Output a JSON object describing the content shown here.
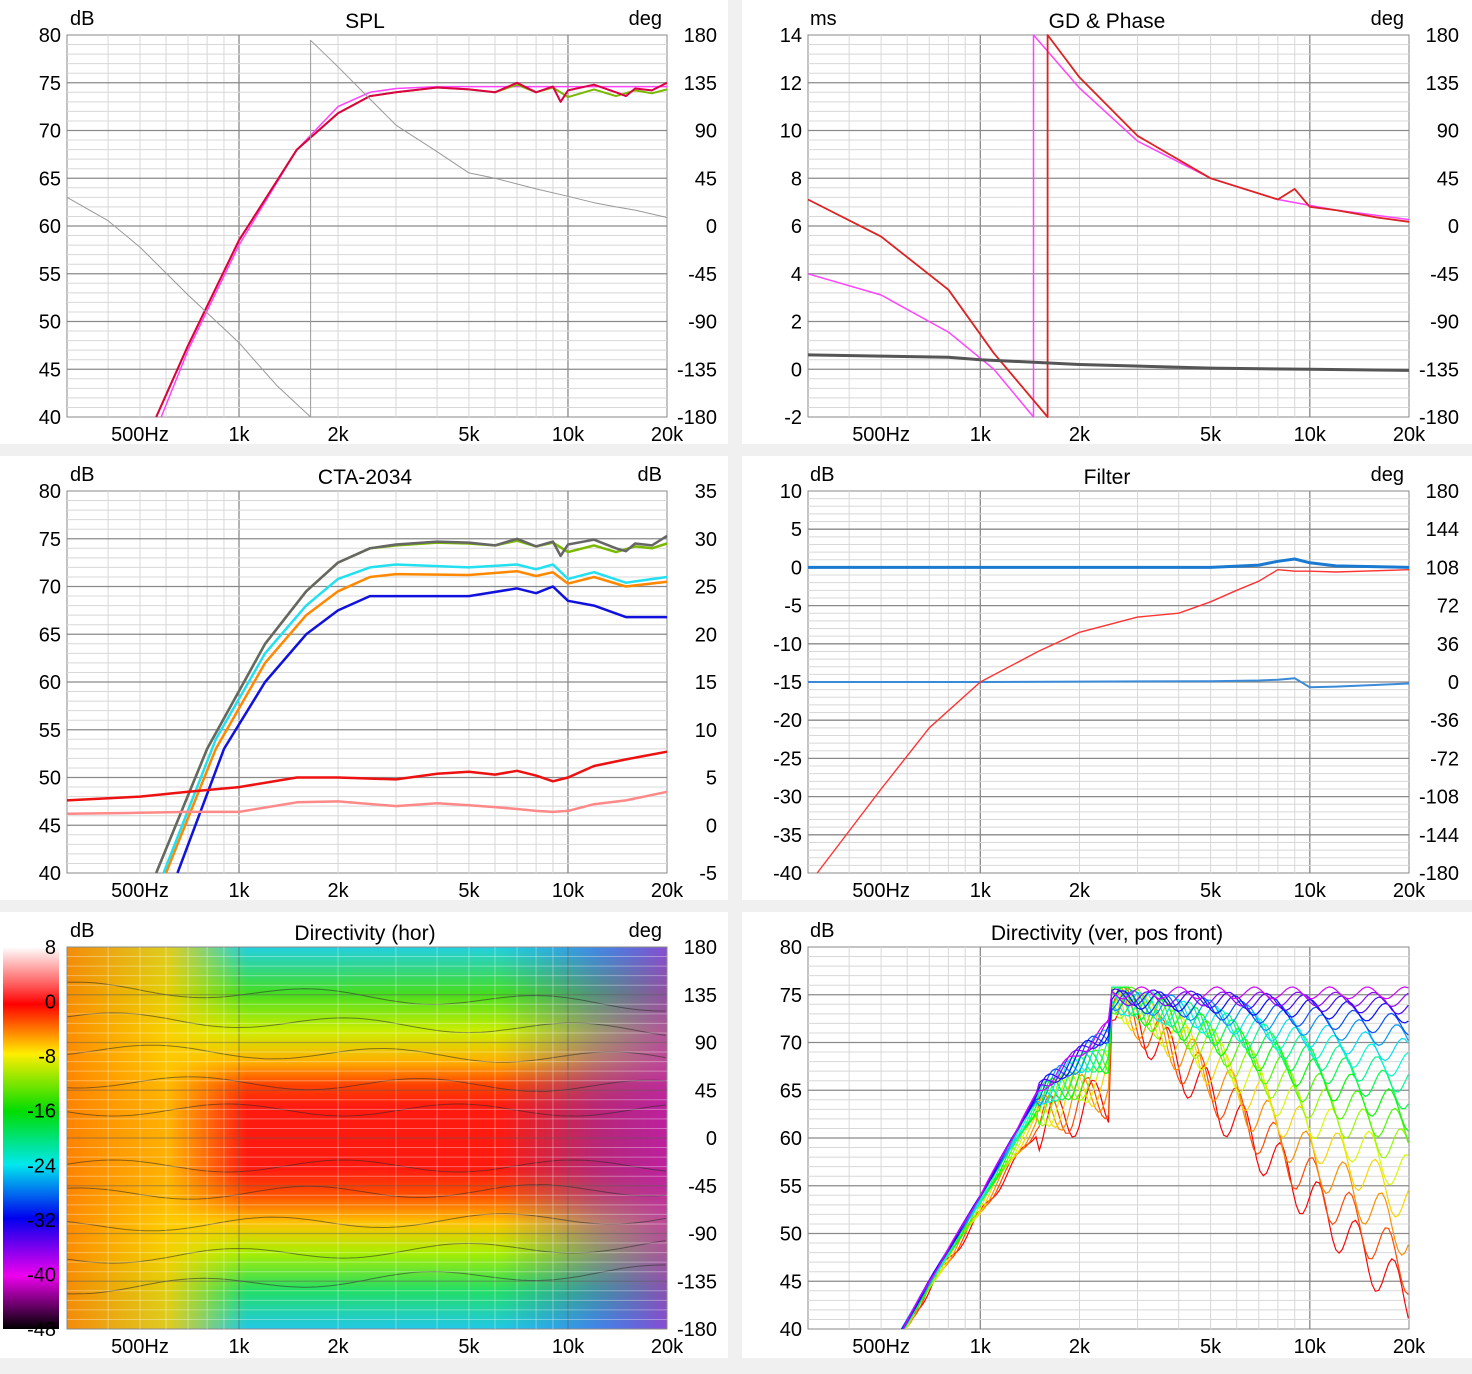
{
  "freq_ticks": [
    {
      "f": 500,
      "label": "500Hz"
    },
    {
      "f": 1000,
      "label": "1k"
    },
    {
      "f": 2000,
      "label": "2k"
    },
    {
      "f": 5000,
      "label": "5k"
    },
    {
      "f": 10000,
      "label": "10k"
    },
    {
      "f": 20000,
      "label": "20k"
    }
  ],
  "chart_data": [
    {
      "id": "spl",
      "type": "line",
      "title": "SPL",
      "left_unit": "dB",
      "right_unit": "deg",
      "xlim": [
        300,
        20000
      ],
      "xscale": "log",
      "ylim": [
        40,
        80
      ],
      "y_ticks": [
        80,
        75,
        70,
        65,
        60,
        55,
        50,
        45,
        40
      ],
      "y2lim": [
        -180,
        180
      ],
      "y2_ticks": [
        180,
        135,
        90,
        45,
        0,
        -45,
        -90,
        -135,
        -180
      ],
      "grid": true,
      "series": [
        {
          "color": "#ff44ff",
          "width": 1.5,
          "axis": "left",
          "x": [
            580,
            700,
            1000,
            1500,
            2000,
            2500,
            3000,
            4000,
            6000,
            10000,
            20000
          ],
          "y": [
            40,
            47,
            58,
            68,
            72.5,
            74,
            74.4,
            74.6,
            74.6,
            74.6,
            74.6
          ]
        },
        {
          "color": "#7ab800",
          "width": 2,
          "axis": "left",
          "x": [
            560,
            700,
            1000,
            1500,
            2000,
            2500,
            3000,
            4000,
            5000,
            6000,
            7000,
            8000,
            9000,
            10000,
            12000,
            14000,
            16000,
            18000,
            20000
          ],
          "y": [
            40,
            47.5,
            58.5,
            68,
            71.8,
            73.6,
            74,
            74.5,
            74.3,
            74,
            74.8,
            74,
            74.5,
            73.5,
            74.3,
            73.6,
            74.2,
            73.9,
            74.3
          ]
        },
        {
          "color": "#dd0044",
          "width": 2,
          "axis": "left",
          "x": [
            560,
            700,
            1000,
            1500,
            2000,
            2500,
            3000,
            4000,
            5000,
            6000,
            7000,
            8000,
            9000,
            9500,
            10000,
            12000,
            14000,
            15000,
            16000,
            18000,
            20000
          ],
          "y": [
            40,
            47.5,
            58.5,
            68,
            71.8,
            73.6,
            74,
            74.5,
            74.3,
            74,
            75,
            74,
            74.6,
            73,
            74.2,
            74.8,
            74,
            73.6,
            74.4,
            74.2,
            75
          ]
        },
        {
          "color": "#999999",
          "width": 1,
          "axis": "right",
          "x": [
            300,
            400,
            500,
            700,
            1000,
            1300,
            1650,
            1650,
            2000,
            3000,
            4000,
            5000,
            6000,
            8000,
            10000,
            12000,
            14000,
            16000,
            20000
          ],
          "y": [
            27,
            5,
            -20,
            -65,
            -110,
            -150,
            -180,
            175,
            150,
            95,
            70,
            50,
            45,
            35,
            28,
            22,
            18,
            15,
            8
          ]
        }
      ]
    },
    {
      "id": "gd",
      "type": "line",
      "title": "GD & Phase",
      "left_unit": "ms",
      "right_unit": "deg",
      "xlim": [
        300,
        20000
      ],
      "xscale": "log",
      "ylim": [
        -2,
        14
      ],
      "y_ticks": [
        14,
        12,
        10,
        8,
        6,
        4,
        2,
        0,
        -2
      ],
      "y2lim": [
        -180,
        180
      ],
      "y2_ticks": [
        180,
        135,
        90,
        45,
        0,
        -45,
        -90,
        -135,
        -180
      ],
      "grid": true,
      "series": [
        {
          "color": "#ff44ff",
          "width": 1.5,
          "axis": "right",
          "x": [
            300,
            500,
            800,
            1100,
            1450,
            1450,
            2000,
            3000,
            5000,
            8000,
            12000,
            20000
          ],
          "y": [
            -45,
            -65,
            -100,
            -135,
            -180,
            180,
            130,
            80,
            45,
            25,
            15,
            6
          ]
        },
        {
          "color": "#dd2222",
          "width": 1.8,
          "axis": "right",
          "x": [
            300,
            500,
            800,
            1100,
            1600,
            1600,
            2000,
            3000,
            5000,
            8000,
            9000,
            10000,
            12000,
            16000,
            20000
          ],
          "y": [
            25,
            -10,
            -60,
            -120,
            -180,
            180,
            140,
            85,
            45,
            25,
            35,
            18,
            15,
            8,
            4
          ]
        },
        {
          "color": "#555555",
          "width": 3,
          "axis": "left",
          "x": [
            300,
            500,
            800,
            1000,
            2000,
            5000,
            10000,
            20000
          ],
          "y": [
            0.6,
            0.55,
            0.5,
            0.4,
            0.2,
            0.05,
            0,
            -0.05
          ]
        }
      ]
    },
    {
      "id": "cta",
      "type": "line",
      "title": "CTA-2034",
      "left_unit": "dB",
      "right_unit": "dB",
      "xlim": [
        300,
        20000
      ],
      "xscale": "log",
      "ylim": [
        40,
        80
      ],
      "y_ticks": [
        80,
        75,
        70,
        65,
        60,
        55,
        50,
        45,
        40
      ],
      "y2lim": [
        -5,
        35
      ],
      "y2_ticks": [
        35,
        30,
        25,
        20,
        15,
        10,
        5,
        0,
        -5
      ],
      "grid": true,
      "series": [
        {
          "color": "#1111dd",
          "width": 2.5,
          "axis": "left",
          "x": [
            650,
            900,
            1200,
            1600,
            2000,
            2500,
            3000,
            5000,
            7000,
            8000,
            9000,
            10000,
            12000,
            15000,
            20000
          ],
          "y": [
            40,
            53,
            60,
            65,
            67.5,
            69,
            69,
            69,
            69.8,
            69.3,
            70,
            68.5,
            68,
            66.8,
            66.8
          ]
        },
        {
          "color": "#ff8800",
          "width": 2.5,
          "axis": "left",
          "x": [
            600,
            850,
            1200,
            1600,
            2000,
            2500,
            3000,
            5000,
            7000,
            8000,
            9000,
            10000,
            12000,
            15000,
            20000
          ],
          "y": [
            40,
            53,
            62,
            67,
            69.5,
            71,
            71.3,
            71.2,
            71.6,
            71.1,
            71.5,
            70.3,
            71,
            70,
            70.5
          ]
        },
        {
          "color": "#22e0f0",
          "width": 2.5,
          "axis": "left",
          "x": [
            590,
            850,
            1200,
            1600,
            2000,
            2500,
            3000,
            5000,
            7000,
            8000,
            9000,
            10000,
            12000,
            15000,
            20000
          ],
          "y": [
            40,
            54,
            63,
            68,
            70.8,
            72,
            72.3,
            72,
            72.3,
            71.8,
            72.3,
            70.8,
            71.5,
            70.4,
            71
          ]
        },
        {
          "color": "#7ab800",
          "width": 2.5,
          "axis": "left",
          "x": [
            560,
            800,
            1200,
            1600,
            2000,
            2500,
            3000,
            4000,
            5000,
            6000,
            7000,
            8000,
            9000,
            10000,
            12000,
            14000,
            16000,
            18000,
            20000
          ],
          "y": [
            40,
            53,
            64,
            69.5,
            72.5,
            74,
            74.3,
            74.6,
            74.5,
            74.3,
            74.8,
            74.2,
            74.6,
            73.6,
            74.3,
            73.6,
            74.2,
            74,
            74.5
          ]
        },
        {
          "color": "#666666",
          "width": 2.5,
          "axis": "left",
          "x": [
            560,
            800,
            1200,
            1600,
            2000,
            2500,
            3000,
            4000,
            5000,
            6000,
            7000,
            8000,
            9000,
            9500,
            10000,
            12000,
            14000,
            15000,
            16000,
            18000,
            20000
          ],
          "y": [
            40,
            53,
            64,
            69.5,
            72.5,
            74,
            74.4,
            74.7,
            74.6,
            74.3,
            75,
            74.2,
            74.7,
            73.2,
            74.4,
            74.9,
            74,
            73.7,
            74.5,
            74.3,
            75.3
          ]
        },
        {
          "color": "#ee1111",
          "width": 2.5,
          "axis": "right",
          "x": [
            300,
            500,
            700,
            1000,
            1500,
            2000,
            3000,
            4000,
            5000,
            6000,
            7000,
            8000,
            9000,
            10000,
            12000,
            15000,
            20000
          ],
          "y": [
            2.6,
            3,
            3.5,
            4,
            5,
            5,
            4.8,
            5.4,
            5.6,
            5.3,
            5.7,
            5.2,
            4.6,
            5,
            6.2,
            6.9,
            7.7
          ]
        },
        {
          "color": "#ff8888",
          "width": 2.5,
          "axis": "right",
          "x": [
            300,
            500,
            700,
            1000,
            1500,
            2000,
            3000,
            4000,
            5000,
            6000,
            7000,
            8000,
            9000,
            10000,
            12000,
            15000,
            20000
          ],
          "y": [
            1.2,
            1.3,
            1.4,
            1.4,
            2.4,
            2.5,
            2,
            2.3,
            2.1,
            1.9,
            1.7,
            1.5,
            1.4,
            1.5,
            2.2,
            2.6,
            3.5
          ]
        }
      ]
    },
    {
      "id": "filter",
      "type": "line",
      "title": "Filter",
      "left_unit": "dB",
      "right_unit": "deg",
      "xlim": [
        300,
        20000
      ],
      "xscale": "log",
      "ylim": [
        -40,
        10
      ],
      "y_ticks": [
        10,
        5,
        0,
        -5,
        -10,
        -15,
        -20,
        -25,
        -30,
        -35,
        -40
      ],
      "y2lim": [
        -180,
        180
      ],
      "y2_ticks": [
        180,
        144,
        108,
        72,
        36,
        0,
        -36,
        -72,
        -108,
        -144,
        -180
      ],
      "grid": true,
      "series": [
        {
          "color": "#1a7ad0",
          "width": 3,
          "axis": "left",
          "x": [
            300,
            1000,
            5000,
            7000,
            8000,
            9000,
            10000,
            12000,
            20000
          ],
          "y": [
            0,
            0,
            0,
            0.3,
            0.8,
            1.1,
            0.6,
            0.2,
            0
          ]
        },
        {
          "color": "#3a8ad8",
          "width": 2,
          "axis": "left",
          "x": [
            300,
            1000,
            5000,
            7000,
            8000,
            9000,
            10000,
            12000,
            20000
          ],
          "y": [
            -15,
            -15,
            -14.9,
            -14.8,
            -14.7,
            -14.5,
            -15.7,
            -15.6,
            -15.2
          ]
        },
        {
          "color": "#ff3333",
          "width": 1.4,
          "axis": "left",
          "x": [
            320,
            500,
            700,
            1000,
            1500,
            2000,
            3000,
            4000,
            5000,
            6000,
            7000,
            8000,
            9000,
            10000,
            12000,
            20000
          ],
          "y": [
            -40,
            -29,
            -21,
            -15,
            -11,
            -8.5,
            -6.5,
            -6,
            -4.5,
            -3,
            -1.8,
            -0.3,
            -0.5,
            -0.5,
            -0.6,
            -0.3
          ]
        }
      ]
    },
    {
      "id": "dir-hor",
      "type": "heatmap",
      "title": "Directivity (hor)",
      "left_unit": "dB",
      "right_unit": "deg",
      "xlim": [
        300,
        20000
      ],
      "xscale": "log",
      "y2lim": [
        -180,
        180
      ],
      "y2_ticks": [
        180,
        135,
        90,
        45,
        0,
        -45,
        -90,
        -135,
        -180
      ],
      "colorbar_ticks": [
        8,
        0,
        -8,
        -16,
        -24,
        -32,
        -40,
        -48
      ],
      "colorbar_range": [
        -48,
        8
      ],
      "grid": true
    },
    {
      "id": "dir-ver",
      "type": "line",
      "title": "Directivity (ver, pos front)",
      "left_unit": "dB",
      "xlim": [
        300,
        20000
      ],
      "xscale": "log",
      "ylim": [
        40,
        80
      ],
      "y_ticks": [
        80,
        75,
        70,
        65,
        60,
        55,
        50,
        45,
        40
      ],
      "grid": true,
      "curve_count": 18,
      "curve_top_level": [
        75,
        75,
        75,
        75,
        75,
        75,
        75,
        75,
        75,
        75,
        74.6,
        74.4,
        74.6,
        74.4,
        74.6,
        74.8,
        74.6,
        75.2
      ],
      "curve_bottom_level": [
        43,
        46,
        49.5,
        53,
        56,
        58.5,
        60.5,
        62.5,
        64.5,
        66,
        67.5,
        69,
        70.5,
        71.8,
        73,
        73.8,
        74.5,
        75.2
      ]
    }
  ]
}
